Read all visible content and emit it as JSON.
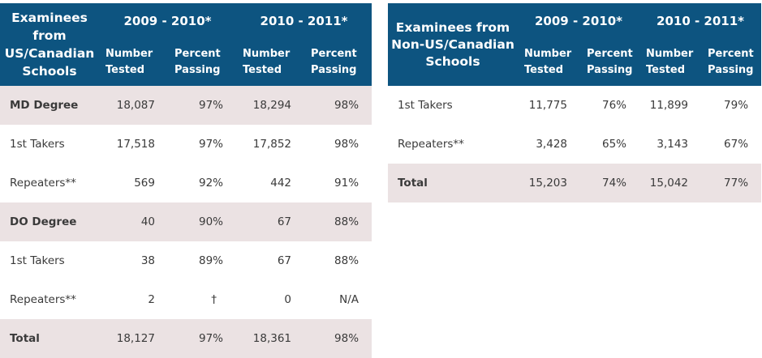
{
  "us_table": {
    "group_header": "Examinees from US/Canadian Schools",
    "year1": "2009 - 2010*",
    "year2": "2010 - 2011*",
    "col_number": "Number Tested",
    "col_percent": "Percent Passing",
    "rows": [
      {
        "label": "MD Degree",
        "n1": "18,087",
        "p1": "97%",
        "n2": "18,294",
        "p2": "98%"
      },
      {
        "label": "1st Takers",
        "n1": "17,518",
        "p1": "97%",
        "n2": "17,852",
        "p2": "98%"
      },
      {
        "label": "Repeaters**",
        "n1": "569",
        "p1": "92%",
        "n2": "442",
        "p2": "91%"
      },
      {
        "label": "DO Degree",
        "n1": "40",
        "p1": "90%",
        "n2": "67",
        "p2": "88%"
      },
      {
        "label": "1st Takers",
        "n1": "38",
        "p1": "89%",
        "n2": "67",
        "p2": "88%"
      },
      {
        "label": "Repeaters**",
        "n1": "2",
        "p1": "†",
        "n2": "0",
        "p2": "N/A"
      },
      {
        "label": "Total",
        "n1": "18,127",
        "p1": "97%",
        "n2": "18,361",
        "p2": "98%"
      }
    ]
  },
  "non_us_table": {
    "group_header": "Examinees from Non-US/Canadian Schools",
    "year1": "2009 - 2010*",
    "year2": "2010 - 2011*",
    "col_number": "Number Tested",
    "col_percent": "Percent Passing",
    "rows": [
      {
        "label": "1st Takers",
        "n1": "11,775",
        "p1": "76%",
        "n2": "11,899",
        "p2": "79%"
      },
      {
        "label": "Repeaters**",
        "n1": "3,428",
        "p1": "65%",
        "n2": "3,143",
        "p2": "67%"
      },
      {
        "label": "Total",
        "n1": "15,203",
        "p1": "74%",
        "n2": "15,042",
        "p2": "77%"
      }
    ]
  },
  "colors": {
    "header_bg": "#0d5480",
    "shade_bg": "#ebe2e3"
  }
}
